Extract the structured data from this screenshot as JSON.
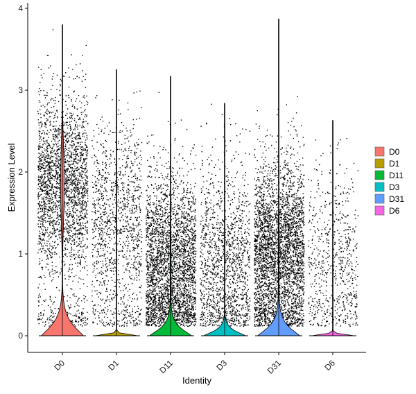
{
  "chart_data": {
    "type": "violin",
    "title": "",
    "xlabel": "Identity",
    "ylabel": "Expression Level",
    "ylim": [
      -0.22,
      4.05
    ],
    "yticks": [
      0,
      1,
      2,
      3,
      4
    ],
    "grid": false,
    "legend_position": "right",
    "categories": [
      "D0",
      "D1",
      "D11",
      "D3",
      "D31",
      "D6"
    ],
    "series": [
      {
        "name": "D0",
        "color": "#F8766D",
        "max": 3.8,
        "n_points": 2600,
        "scatter_center": 1.85,
        "scatter_spread": 0.55,
        "violin_peak_width": 0.8,
        "violin_spread": 0.18,
        "upper_density": 0.07
      },
      {
        "name": "D1",
        "color": "#B79F00",
        "max": 3.25,
        "n_points": 1300,
        "scatter_center": 1.4,
        "scatter_spread": 0.6,
        "violin_peak_width": 0.8,
        "violin_spread": 0.02,
        "upper_density": 0.0
      },
      {
        "name": "D11",
        "color": "#00BA38",
        "max": 3.17,
        "n_points": 3200,
        "scatter_center": 0.9,
        "scatter_spread": 0.55,
        "violin_peak_width": 0.8,
        "violin_spread": 0.12,
        "upper_density": 0.02
      },
      {
        "name": "D3",
        "color": "#00BFC4",
        "max": 2.84,
        "n_points": 1500,
        "scatter_center": 0.9,
        "scatter_spread": 0.6,
        "violin_peak_width": 0.8,
        "violin_spread": 0.08,
        "upper_density": 0.0
      },
      {
        "name": "D31",
        "color": "#619CFF",
        "max": 3.87,
        "n_points": 3600,
        "scatter_center": 1.05,
        "scatter_spread": 0.55,
        "violin_peak_width": 0.8,
        "violin_spread": 0.14,
        "upper_density": 0.02
      },
      {
        "name": "D6",
        "color": "#F564E3",
        "max": 2.63,
        "n_points": 700,
        "scatter_center": 0.9,
        "scatter_spread": 0.6,
        "violin_peak_width": 0.8,
        "violin_spread": 0.02,
        "upper_density": 0.0
      }
    ]
  }
}
